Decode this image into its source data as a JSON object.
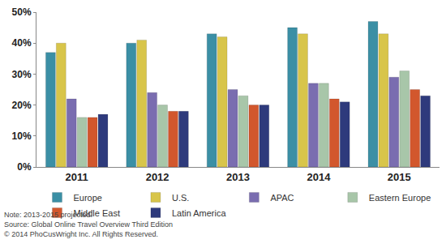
{
  "chart_data": {
    "type": "bar",
    "categories": [
      "2011",
      "2012",
      "2013",
      "2014",
      "2015"
    ],
    "series": [
      {
        "name": "Europe",
        "color": "#3b8fa5",
        "values": [
          37,
          40,
          43,
          45,
          47
        ]
      },
      {
        "name": "U.S.",
        "color": "#d8c54a",
        "values": [
          40,
          41,
          42,
          43,
          43
        ]
      },
      {
        "name": "APAC",
        "color": "#7a6db0",
        "values": [
          22,
          24,
          25,
          27,
          29
        ]
      },
      {
        "name": "Eastern Europe",
        "color": "#a8c6a9",
        "values": [
          16,
          20,
          23,
          27,
          31
        ]
      },
      {
        "name": "Middle East",
        "color": "#d2572d",
        "values": [
          16,
          18,
          20,
          22,
          25
        ]
      },
      {
        "name": "Latin America",
        "color": "#2e3a7c",
        "values": [
          17,
          18,
          20,
          21,
          23
        ]
      }
    ],
    "ylim": [
      0,
      50
    ],
    "yticks": [
      {
        "value": 0,
        "label": "0%"
      },
      {
        "value": 10,
        "label": "10%"
      },
      {
        "value": 20,
        "label": "20%"
      },
      {
        "value": 30,
        "label": "30%"
      },
      {
        "value": 40,
        "label": "40%"
      },
      {
        "value": 50,
        "label": "50%"
      }
    ],
    "grid": false,
    "legend": "bottom",
    "annotations": [
      "Note: 2013-2015 projected.",
      "Source: Global Online Travel Overview Third Edition",
      "© 2014 PhoCusWright Inc. All Rights Reserved."
    ]
  }
}
